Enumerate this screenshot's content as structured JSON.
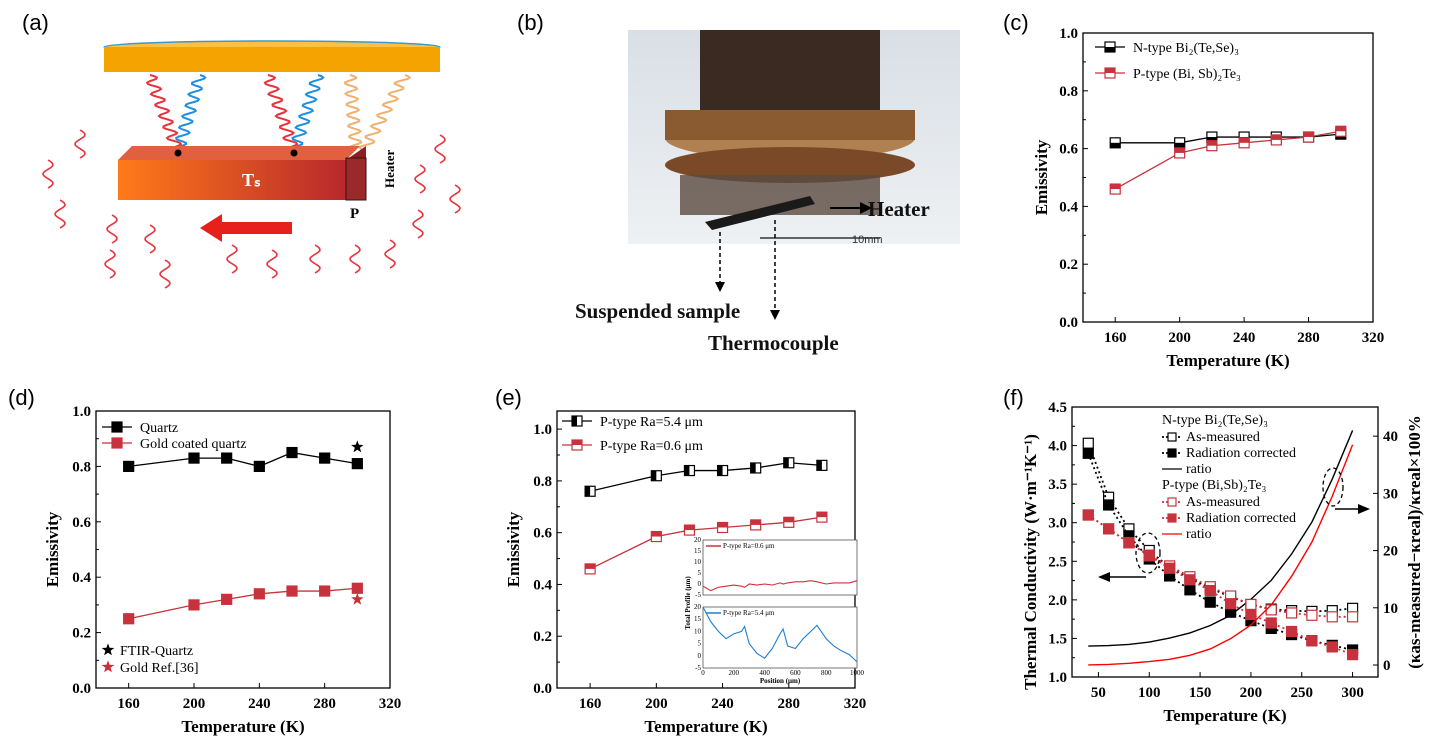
{
  "panel_labels": [
    "(a)",
    "(b)",
    "(c)",
    "(d)",
    "(e)",
    "(f)"
  ],
  "panel_a": {
    "ts_label": "Tₛ",
    "heater_label": "Heater",
    "p_label": "P",
    "colors": {
      "disk": "#f5a300",
      "bar_start": "#ff7a1a",
      "bar_end": "#b8282c",
      "spring_red": "#e8323c",
      "spring_blue": "#1e8fe0",
      "spring_orange": "#f0b070",
      "arrow": "#e8201c"
    }
  },
  "panel_b": {
    "heater_label": "Heater",
    "scale_label": "10mm",
    "sample_label": "Suspended sample",
    "thermocouple_label": "Thermocouple"
  },
  "chart_data": [
    {
      "id": "c",
      "type": "line",
      "xlabel": "Temperature (K)",
      "ylabel": "Emissivity",
      "xlim": [
        140,
        320
      ],
      "ylim": [
        0,
        1.0
      ],
      "xticks": [
        160,
        200,
        240,
        280,
        320
      ],
      "yticks": [
        0.0,
        0.2,
        0.4,
        0.6,
        0.8,
        1.0
      ],
      "x": [
        160,
        200,
        220,
        240,
        260,
        280,
        300
      ],
      "legend": "top-left",
      "series": [
        {
          "name": "N-type Bi₂(Te,Se)₃",
          "color": "#000000",
          "marker": "half-bottom",
          "values": [
            0.62,
            0.62,
            0.64,
            0.64,
            0.64,
            0.64,
            0.65
          ]
        },
        {
          "name": "P-type (Bi, Sb)₂Te₃",
          "color": "#c8323c",
          "marker": "half-top",
          "values": [
            0.46,
            0.585,
            0.61,
            0.62,
            0.63,
            0.64,
            0.66
          ]
        }
      ]
    },
    {
      "id": "d",
      "type": "line",
      "xlabel": "Temperature (K)",
      "ylabel": "Emissivity",
      "xlim": [
        140,
        320
      ],
      "ylim": [
        0,
        1.0
      ],
      "xticks": [
        160,
        200,
        240,
        280,
        320
      ],
      "yticks": [
        0.0,
        0.2,
        0.4,
        0.6,
        0.8,
        1.0
      ],
      "x": [
        160,
        200,
        220,
        240,
        260,
        280,
        300
      ],
      "legend": "top-left",
      "series": [
        {
          "name": "Quartz",
          "color": "#000000",
          "marker": "filled",
          "values": [
            0.8,
            0.83,
            0.83,
            0.8,
            0.85,
            0.83,
            0.81
          ]
        },
        {
          "name": "Gold coated quartz",
          "color": "#c8323c",
          "marker": "filled",
          "values": [
            0.25,
            0.3,
            0.32,
            0.34,
            0.35,
            0.35,
            0.36
          ]
        }
      ],
      "reference_points": [
        {
          "name": "FTIR-Quartz",
          "color": "#000000",
          "marker": "star",
          "x": 300,
          "y": 0.87
        },
        {
          "name": "Gold Ref.[36]",
          "color": "#c8323c",
          "marker": "star",
          "x": 300,
          "y": 0.32
        }
      ]
    },
    {
      "id": "e",
      "type": "line",
      "xlabel": "Temperature (K)",
      "ylabel": "Emissivity",
      "xlim": [
        140,
        320
      ],
      "ylim": [
        0,
        1.07
      ],
      "xticks": [
        160,
        200,
        240,
        280,
        320
      ],
      "yticks": [
        0.0,
        0.2,
        0.4,
        0.6,
        0.8,
        1.0
      ],
      "x": [
        160,
        200,
        220,
        240,
        260,
        280,
        300
      ],
      "legend": "top-left",
      "series": [
        {
          "name": "P-type Ra=5.4 μm",
          "color": "#000000",
          "marker": "half-left",
          "values": [
            0.76,
            0.82,
            0.84,
            0.84,
            0.85,
            0.87,
            0.86
          ]
        },
        {
          "name": "P-type Ra=0.6 μm",
          "color": "#c8323c",
          "marker": "half-top",
          "values": [
            0.46,
            0.585,
            0.61,
            0.62,
            0.63,
            0.64,
            0.66
          ]
        }
      ],
      "inset": {
        "xlabel": "Position (μm)",
        "ylabel": "Total Profile (μm)",
        "xlim": [
          0,
          1000
        ],
        "ylim": [
          -5,
          20
        ],
        "xticks": [
          0,
          200,
          400,
          600,
          800,
          1000
        ],
        "yticks": [
          -5,
          0,
          5,
          10,
          15,
          20
        ],
        "x": [
          0,
          50,
          100,
          150,
          200,
          250,
          270,
          300,
          350,
          400,
          450,
          500,
          520,
          550,
          600,
          650,
          700,
          740,
          800,
          850,
          900,
          950,
          1000
        ],
        "series": [
          {
            "name": "P-type  Ra=0.6 μm",
            "color": "#d0303c",
            "values": [
              -1,
              -3,
              -1.5,
              -1,
              -0.5,
              -1,
              -1.5,
              0,
              -0.5,
              0,
              -0.5,
              0.5,
              0,
              0.5,
              1,
              1,
              1.5,
              1,
              0,
              0.5,
              0.5,
              0.5,
              1.5
            ]
          },
          {
            "name": "P-type  Ra=5.4 μm",
            "color": "#1e7fd0",
            "values": [
              20,
              14,
              10,
              7,
              9,
              10,
              12,
              5,
              1,
              -1,
              3,
              9,
              11,
              4,
              3,
              7,
              10,
              12.5,
              7,
              4,
              2,
              0.5,
              -2.5
            ]
          }
        ]
      }
    },
    {
      "id": "f",
      "type": "line",
      "xlabel": "Temperature  (K)",
      "ylabel": "Thermal Conductivity (W·m⁻¹K⁻¹)",
      "y2label": "(κas-measured−κreal)/κreal×100%",
      "xlim": [
        24,
        325
      ],
      "ylim": [
        1.0,
        4.5
      ],
      "y2lim": [
        -2.1,
        45.1
      ],
      "xticks": [
        50,
        100,
        150,
        200,
        250,
        300
      ],
      "yticks": [
        1.0,
        1.5,
        2.0,
        2.5,
        3.0,
        3.5,
        4.0,
        4.5
      ],
      "y2ticks": [
        0,
        10,
        20,
        30,
        40
      ],
      "x": [
        40,
        60,
        80,
        100,
        120,
        140,
        160,
        180,
        200,
        220,
        240,
        260,
        280,
        300
      ],
      "legend": "top-center",
      "groups": [
        "N-type Bi₂(Te,Se)₃",
        "P-type (Bi,Sb)₂Te₃"
      ],
      "series": [
        {
          "group": 0,
          "name": "As-measured",
          "color": "#000000",
          "marker": "open",
          "axis": "left",
          "values": [
            4.03,
            3.33,
            2.92,
            2.64,
            2.42,
            2.28,
            2.15,
            2.04,
            1.94,
            1.88,
            1.86,
            1.85,
            1.86,
            1.89
          ]
        },
        {
          "group": 0,
          "name": "Radiation corrected",
          "color": "#000000",
          "marker": "filled",
          "axis": "left",
          "values": [
            3.9,
            3.23,
            2.83,
            2.53,
            2.31,
            2.13,
            1.97,
            1.84,
            1.73,
            1.63,
            1.55,
            1.47,
            1.41,
            1.35
          ]
        },
        {
          "group": 0,
          "name": "ratio",
          "color": "#000000",
          "marker": "none",
          "axis": "right",
          "values": [
            3.3,
            3.4,
            3.6,
            4.0,
            4.7,
            5.6,
            6.9,
            8.7,
            11.5,
            14.8,
            19.4,
            25,
            32.5,
            41
          ]
        },
        {
          "group": 1,
          "name": "As-measured",
          "color": "#c8323c",
          "marker": "open",
          "axis": "left",
          "values": [
            3.1,
            2.92,
            2.74,
            2.58,
            2.44,
            2.3,
            2.17,
            2.05,
            1.94,
            1.87,
            1.83,
            1.8,
            1.78,
            1.78
          ]
        },
        {
          "group": 1,
          "name": "Radiation corrected",
          "color": "#c8323c",
          "marker": "filled",
          "axis": "left",
          "values": [
            3.1,
            2.92,
            2.74,
            2.57,
            2.41,
            2.26,
            2.12,
            1.95,
            1.81,
            1.7,
            1.59,
            1.47,
            1.39,
            1.29
          ]
        },
        {
          "group": 1,
          "name": "ratio",
          "color": "#ff0000",
          "marker": "none",
          "axis": "right",
          "values": [
            0,
            0.1,
            0.3,
            0.6,
            1.0,
            1.7,
            2.8,
            4.6,
            7.0,
            10.5,
            15.5,
            21.5,
            29.5,
            38.5
          ]
        }
      ]
    }
  ]
}
